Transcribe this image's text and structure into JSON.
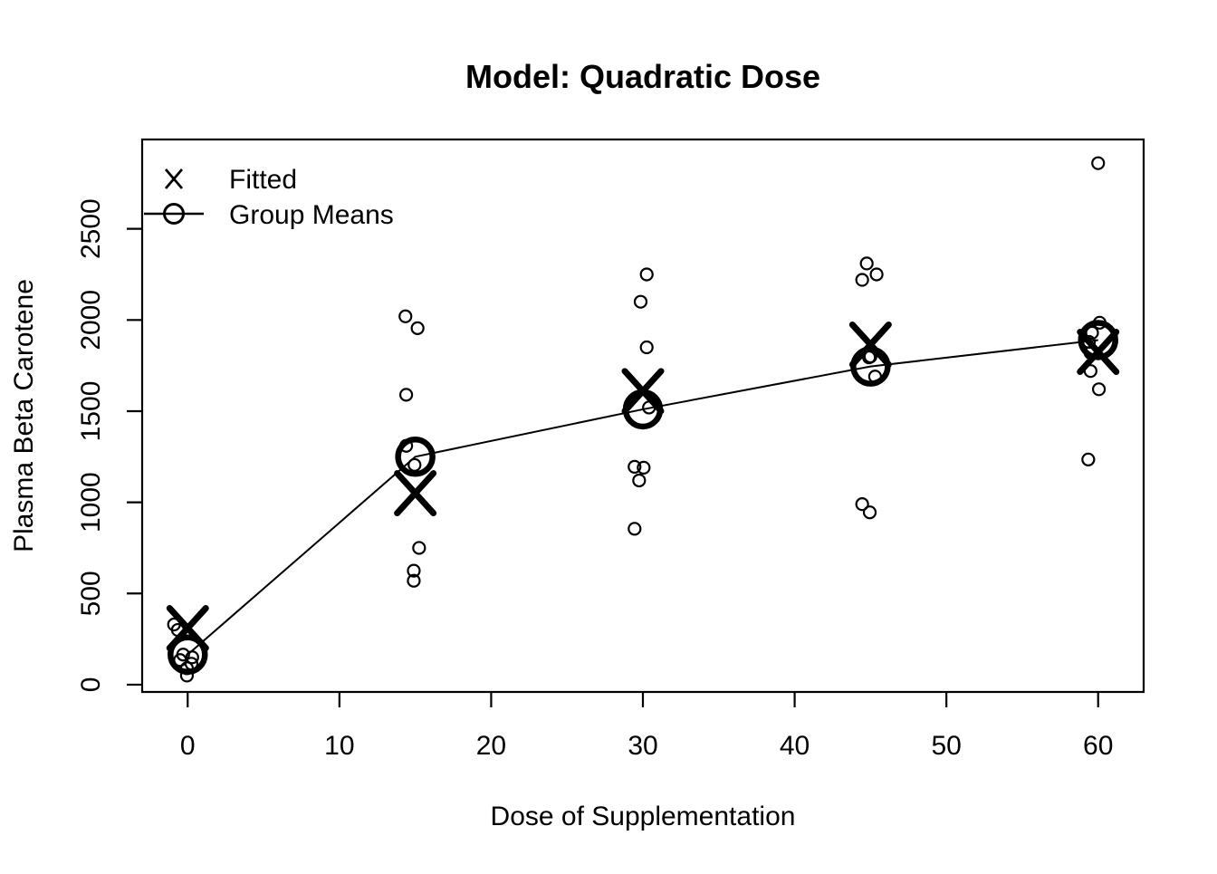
{
  "figure": {
    "title": "Model: Quadratic Dose",
    "xlabel": "Dose of Supplementation",
    "ylabel": "Plasma Beta Carotene"
  },
  "legend": {
    "position": "top-left",
    "items": [
      {
        "symbol": "x-mark",
        "label": "Fitted"
      },
      {
        "symbol": "circle-with-line",
        "label": "Group Means"
      }
    ]
  },
  "chart_data": {
    "type": "scatter",
    "title": "Model: Quadratic Dose",
    "xlabel": "Dose of Supplementation",
    "ylabel": "Plasma Beta Carotene",
    "x_ticks": [
      0,
      10,
      20,
      30,
      40,
      50,
      60
    ],
    "y_ticks": [
      0,
      500,
      1000,
      1500,
      2000,
      2500
    ],
    "xlim": [
      -3,
      63
    ],
    "ylim": [
      -40,
      2990
    ],
    "grid": false,
    "legend_position": "top-left",
    "doses": [
      0,
      15,
      30,
      45,
      60
    ],
    "group_means": [
      165,
      1250,
      1510,
      1745,
      1890
    ],
    "fitted": [
      310,
      1050,
      1610,
      1865,
      1825
    ],
    "observations": [
      {
        "dose": 0,
        "values": [
          330,
          300,
          165,
          150,
          135,
          115,
          90,
          50
        ],
        "x_offsets": [
          -0.9,
          -0.65,
          -0.3,
          0.3,
          -0.5,
          0.25,
          -0.05,
          -0.05
        ]
      },
      {
        "dose": 15,
        "values": [
          2020,
          1955,
          1590,
          1310,
          1205,
          750,
          625,
          570
        ],
        "x_offsets": [
          -0.65,
          0.15,
          -0.6,
          -0.6,
          -0.05,
          0.25,
          -0.1,
          -0.1
        ]
      },
      {
        "dose": 30,
        "values": [
          2250,
          2100,
          1850,
          1520,
          1195,
          1190,
          1120,
          855
        ],
        "x_offsets": [
          0.25,
          -0.15,
          0.25,
          0.4,
          -0.55,
          0.05,
          -0.25,
          -0.55
        ]
      },
      {
        "dose": 45,
        "values": [
          2310,
          2250,
          2220,
          1800,
          1795,
          1690,
          990,
          945
        ],
        "x_offsets": [
          -0.25,
          0.4,
          -0.55,
          0,
          -0.1,
          0.3,
          -0.55,
          -0.05
        ]
      },
      {
        "dose": 60,
        "values": [
          2860,
          1985,
          1930,
          1880,
          1820,
          1720,
          1620,
          1235
        ],
        "x_offsets": [
          0,
          0.1,
          -0.4,
          -0.6,
          -0.5,
          -0.5,
          0.05,
          -0.65
        ]
      }
    ],
    "colors": {
      "foreground": "#000000",
      "background": "#ffffff"
    }
  }
}
